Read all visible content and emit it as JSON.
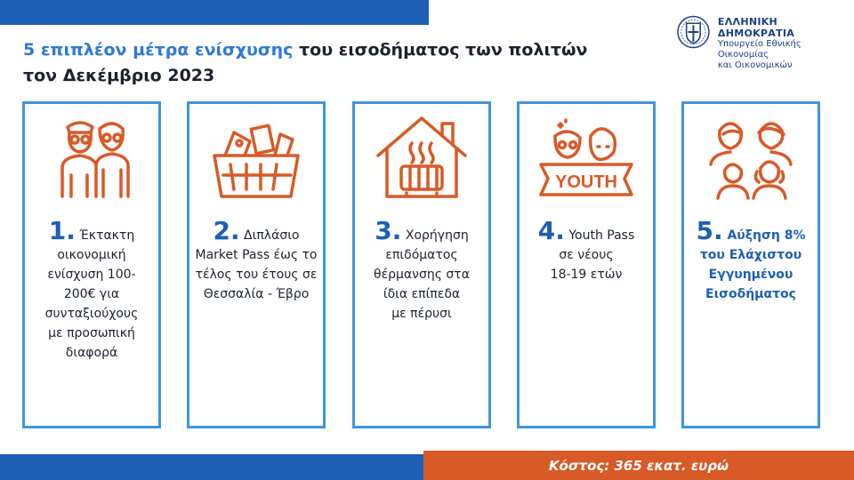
{
  "header": {
    "title_accent": "5 επιπλέον μέτρα ενίσχυσης",
    "title_rest_line1": " του εισοδήματος των πολιτών",
    "title_line2": "τον Δεκέμβριο 2023"
  },
  "logo": {
    "line1": "ΕΛΛΗΝΙΚΗ ΔΗΜΟΚΡΑΤΙΑ",
    "line2": "Υπουργείο Εθνικής Οικονομίας",
    "line3": "και Οικονομικών"
  },
  "measures": [
    {
      "num": "1.",
      "first": " Έκτακτη",
      "lines": [
        "οικονομική",
        "ενίσχυση 100-",
        "200€ για",
        "συνταξιούχους",
        "με προσωπική",
        "διαφορά"
      ],
      "icon": "elderly-couple-icon"
    },
    {
      "num": "2.",
      "first": " Διπλάσιο",
      "lines": [
        "Market Pass έως το",
        "τέλος του έτους σε",
        "Θεσσαλία - Έβρο"
      ],
      "icon": "shopping-basket-icon"
    },
    {
      "num": "3.",
      "first": " Χορήγηση",
      "lines": [
        "επιδόματος",
        "θέρμανσης στα",
        "ίδια επίπεδα",
        "με πέρυσι"
      ],
      "icon": "heated-house-icon"
    },
    {
      "num": "4.",
      "first": " Youth Pass",
      "lines": [
        "σε νέους",
        "18-19 ετών"
      ],
      "icon": "youth-banner-icon",
      "icon_text": "YOUTH"
    },
    {
      "num": "5.",
      "first": " Αύξηση 8%",
      "lines": [
        "του Ελάχιστου",
        "Εγγυημένου",
        "Εισοδήματος"
      ],
      "icon": "family-icon"
    }
  ],
  "footer": {
    "cost": "Κόστος: 365 εκατ. ευρώ"
  },
  "colors": {
    "blue_bar": "#1c5fb5",
    "accent_blue": "#2e7ad6",
    "card_border": "#3f95dc",
    "icon_orange": "#d85a27",
    "number_blue": "#1c5fb5",
    "cost_bg": "#d85a27"
  }
}
